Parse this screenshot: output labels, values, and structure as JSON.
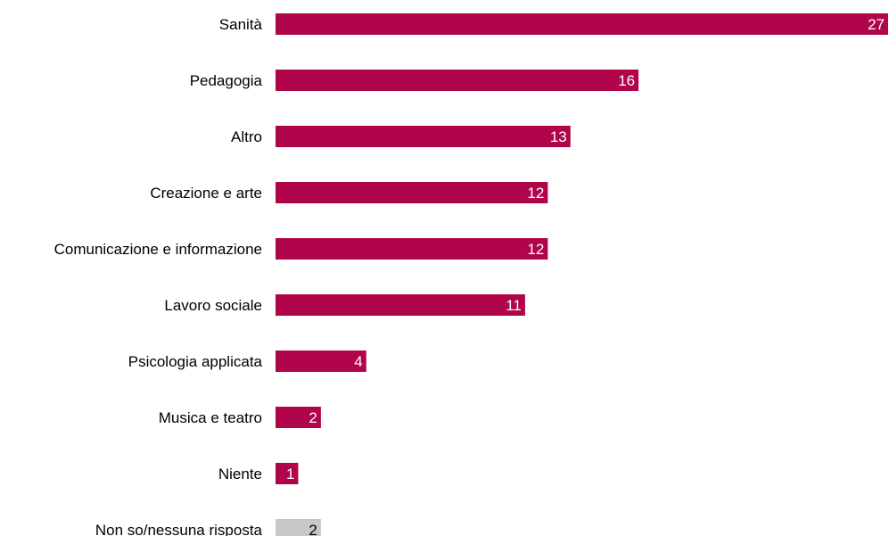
{
  "chart_data": {
    "type": "bar",
    "orientation": "horizontal",
    "categories": [
      "Sanità",
      "Pedagogia",
      "Altro",
      "Creazione e arte",
      "Comunicazione e informazione",
      "Lavoro sociale",
      "Psicologia applicata",
      "Musica e teatro",
      "Niente",
      "Non so/nessuna risposta"
    ],
    "values": [
      27,
      16,
      13,
      12,
      12,
      11,
      4,
      2,
      1,
      2
    ],
    "value_labels": [
      "27",
      "16",
      "13",
      "12",
      "12",
      "11",
      "4",
      "2",
      "1",
      "2"
    ],
    "xlim": [
      0,
      27
    ],
    "grid": false,
    "legend": "none",
    "title": "",
    "xlabel": "",
    "ylabel": "",
    "colors": {
      "bar": "#b0054a",
      "bar_muted": "#c7c7c7",
      "label_on_bar": "#ffffff",
      "label_on_muted": "#000000",
      "category_text": "#000000"
    },
    "muted_categories": [
      "Non so/nessuna risposta"
    ]
  }
}
